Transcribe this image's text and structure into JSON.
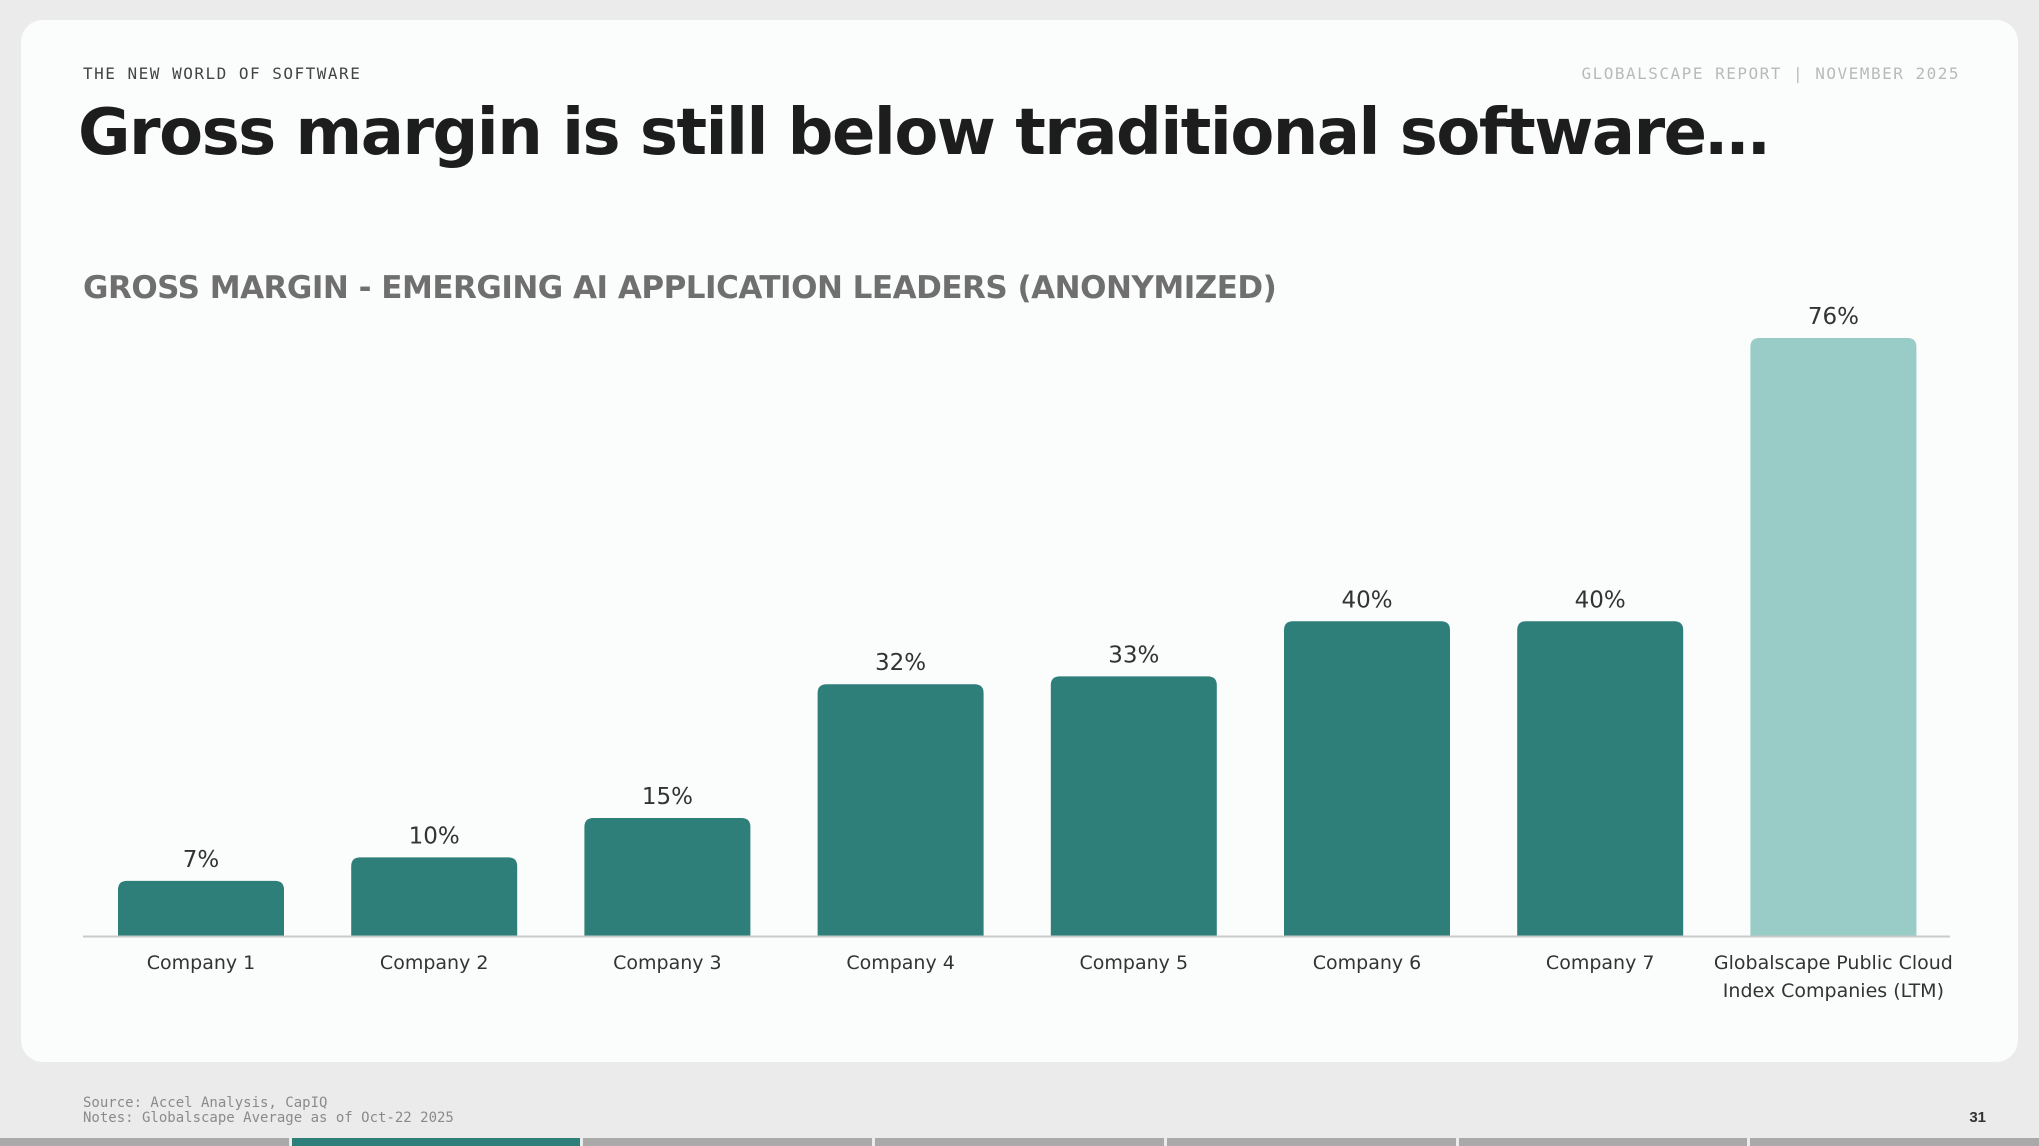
{
  "header": {
    "eyebrow": "THE NEW WORLD OF SOFTWARE",
    "report": "GLOBALSCAPE REPORT | NOVEMBER 2025",
    "title": "Gross margin is still below traditional software…"
  },
  "chart_data": {
    "type": "bar",
    "title": "GROSS MARGIN - EMERGING AI APPLICATION LEADERS (ANONYMIZED)",
    "xlabel": "",
    "ylabel": "",
    "ylim": [
      0,
      76
    ],
    "categories": [
      [
        "Company 1"
      ],
      [
        "Company 2"
      ],
      [
        "Company 3"
      ],
      [
        "Company 4"
      ],
      [
        "Company 5"
      ],
      [
        "Company 6"
      ],
      [
        "Company 7"
      ],
      [
        "Globalscape Public Cloud",
        "Index Companies (LTM)"
      ]
    ],
    "values": [
      7,
      10,
      15,
      32,
      33,
      40,
      40,
      76
    ],
    "value_labels": [
      "7%",
      "10%",
      "15%",
      "32%",
      "33%",
      "40%",
      "40%",
      "76%"
    ],
    "colors": {
      "primary": "#2e7f79",
      "benchmark": "#99cbc7",
      "axis": "#c9c9c9"
    },
    "highlight_index": 7
  },
  "footer": {
    "source": "Source: Accel Analysis, CapIQ",
    "notes": "Notes: Globalscape Average as of Oct-22 2025",
    "page_number": "31"
  },
  "progress": {
    "segments": 7,
    "active_index": 1,
    "active_color": "#2e7f79"
  }
}
